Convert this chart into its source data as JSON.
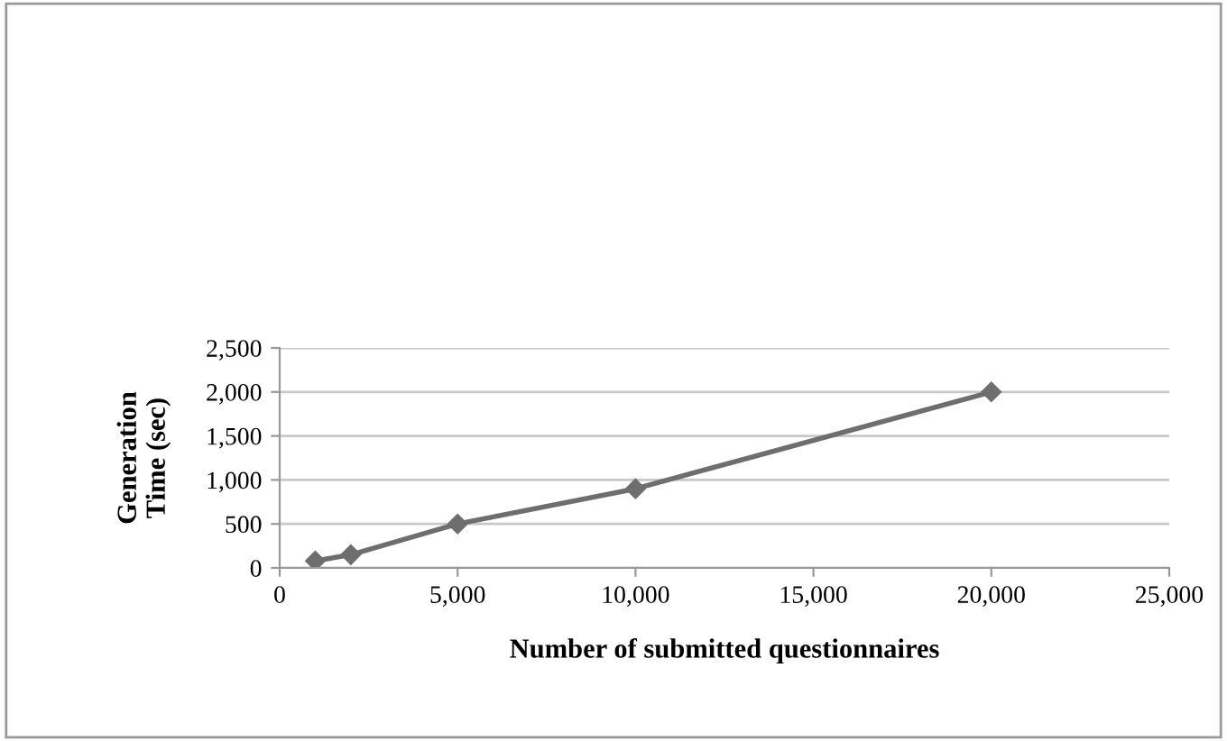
{
  "chart_data": {
    "type": "line",
    "xlabel": "Number of submitted questionnaires",
    "ylabel": "Generation\nTime (sec)",
    "x": [
      1000,
      2000,
      5000,
      10000,
      20000
    ],
    "series": [
      {
        "color": "#6e6e6e",
        "values": [
          80,
          150,
          500,
          900,
          2000
        ]
      }
    ],
    "xlim": [
      0,
      25000
    ],
    "xticks": [
      {
        "value": 0,
        "label": "0"
      },
      {
        "value": 5000,
        "label": "5,000"
      },
      {
        "value": 10000,
        "label": "10,000"
      },
      {
        "value": 15000,
        "label": "15,000"
      },
      {
        "value": 20000,
        "label": "20,000"
      },
      {
        "value": 25000,
        "label": "25,000"
      }
    ],
    "ylim": [
      0,
      2500
    ],
    "yticks": [
      {
        "value": 0,
        "label": "0"
      },
      {
        "value": 500,
        "label": "500"
      },
      {
        "value": 1000,
        "label": "1,000"
      },
      {
        "value": 1500,
        "label": "1,500"
      },
      {
        "value": 2000,
        "label": "2,000"
      },
      {
        "value": 2500,
        "label": "2,500"
      }
    ],
    "grid": "y",
    "marker": "diamond",
    "line_style": "solid",
    "legend": false
  }
}
